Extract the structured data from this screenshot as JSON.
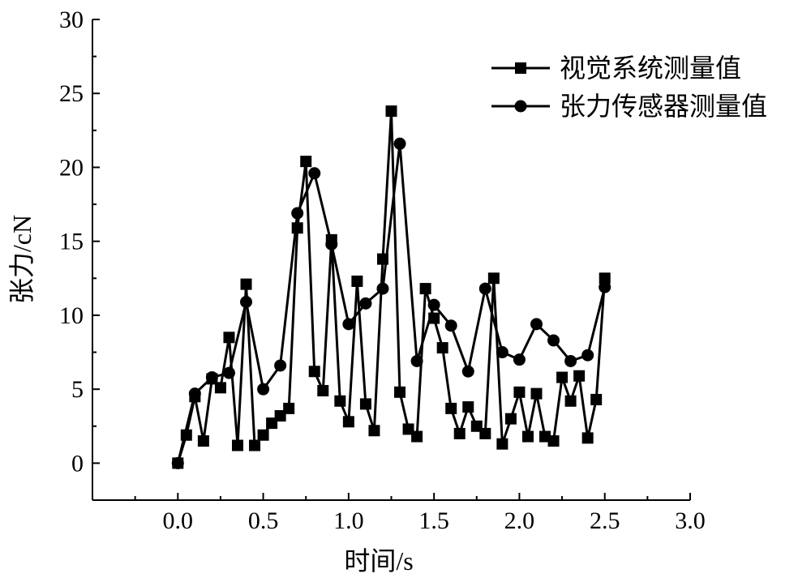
{
  "chart_data": {
    "type": "line",
    "title": "",
    "xlabel": "时间/s",
    "ylabel": "张力/cN",
    "xlim": [
      -0.5,
      3.0
    ],
    "ylim": [
      -2.5,
      30
    ],
    "xticks": [
      "0.0",
      "0.5",
      "1.0",
      "1.5",
      "2.0",
      "2.5",
      "3.0"
    ],
    "yticks": [
      "0",
      "5",
      "10",
      "15",
      "20",
      "25",
      "30"
    ],
    "legend_position": "top-right",
    "grid": false,
    "series": [
      {
        "name": "视觉系统测量值",
        "marker": "square",
        "color": "#000000",
        "x": [
          0.0,
          0.05,
          0.1,
          0.15,
          0.2,
          0.25,
          0.3,
          0.35,
          0.4,
          0.45,
          0.5,
          0.55,
          0.6,
          0.65,
          0.7,
          0.75,
          0.8,
          0.85,
          0.9,
          0.95,
          1.0,
          1.05,
          1.1,
          1.15,
          1.2,
          1.25,
          1.3,
          1.35,
          1.4,
          1.45,
          1.5,
          1.55,
          1.6,
          1.65,
          1.7,
          1.75,
          1.8,
          1.85,
          1.9,
          1.95,
          2.0,
          2.05,
          2.1,
          2.15,
          2.2,
          2.25,
          2.3,
          2.35,
          2.4,
          2.45,
          2.5
        ],
        "y": [
          0.0,
          1.9,
          4.5,
          1.5,
          5.7,
          5.1,
          8.5,
          1.2,
          12.1,
          1.2,
          1.9,
          2.7,
          3.2,
          3.7,
          15.9,
          20.4,
          6.2,
          4.9,
          15.1,
          4.2,
          2.8,
          12.3,
          4.0,
          2.2,
          13.8,
          23.8,
          4.8,
          2.3,
          1.8,
          11.8,
          9.8,
          7.8,
          3.7,
          2.0,
          3.8,
          2.5,
          2.0,
          12.5,
          1.3,
          3.0,
          4.8,
          1.8,
          4.7,
          1.8,
          1.5,
          5.8,
          4.2,
          5.9,
          1.7,
          4.3,
          12.5
        ]
      },
      {
        "name": "张力传感器测量值",
        "marker": "circle",
        "color": "#000000",
        "x": [
          0.0,
          0.1,
          0.2,
          0.3,
          0.4,
          0.5,
          0.6,
          0.7,
          0.8,
          0.9,
          1.0,
          1.1,
          1.2,
          1.3,
          1.4,
          1.5,
          1.6,
          1.7,
          1.8,
          1.9,
          2.0,
          2.1,
          2.2,
          2.3,
          2.4,
          2.5
        ],
        "y": [
          0.0,
          4.7,
          5.8,
          6.1,
          10.9,
          5.0,
          6.6,
          16.9,
          19.6,
          14.8,
          9.4,
          10.8,
          11.8,
          21.6,
          6.9,
          10.7,
          9.3,
          6.2,
          11.8,
          7.5,
          7.0,
          9.4,
          8.3,
          6.9,
          7.3,
          11.9
        ]
      }
    ]
  }
}
